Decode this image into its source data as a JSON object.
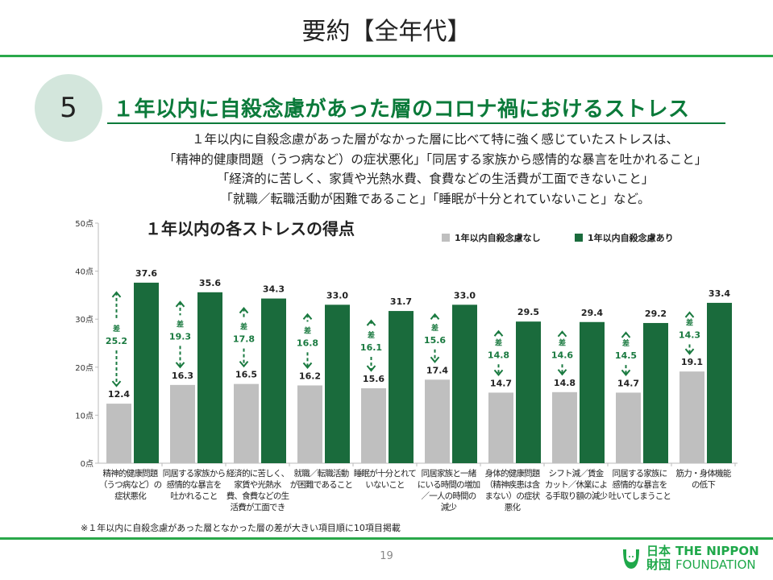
{
  "slide_title": "要約【全年代】",
  "section_number": "5",
  "heading": "１年以内に自殺念慮があった層のコロナ禍におけるストレス",
  "summary_lines": [
    "１年以内に自殺念慮があった層がなかった層に比べて特に強く感じていたストレスは、",
    "「精神的健康問題（うつ病など）の症状悪化」「同居する家族から感情的な暴言を吐かれること」",
    "「経済的に苦しく、家賃や光熱水費、食費などの生活費が工面できないこと」",
    "「就職／転職活動が困難であること」「睡眠が十分とれていないこと」など。"
  ],
  "colors": {
    "accent": "#0b7a3a",
    "gray_bar": "#bfbfbf",
    "green_bar": "#1a6b3c",
    "line": "#2aa84a"
  },
  "chart_data": {
    "type": "bar",
    "title": "１年以内の各ストレスの得点",
    "ylim": [
      0,
      50
    ],
    "yticks": [
      "0点",
      "10点",
      "20点",
      "30点",
      "40点",
      "50点"
    ],
    "ytick_values": [
      0,
      10,
      20,
      30,
      40,
      50
    ],
    "categories": [
      "精神的健康問題\n（うつ病など）の\n症状悪化",
      "同居する家族から\n感情的な暴言を\n吐かれること",
      "経済的に苦しく、\n家賃や光熱水\n費、食費などの生\n活費が工面でき",
      "就職／転職活動\nが困難であること",
      "睡眠が十分とれて\nいないこと",
      "同居家族と一緒\nにいる時間の増加\n／一人の時間の\n減少",
      "身体的健康問題\n（精神疾患は含\nまない）の症状\n悪化",
      "シフト減／賃金\nカット／休業によ\nる手取り額の減少",
      "同居する家族に\n感情的な暴言を\n吐いてしまうこと",
      "筋力・身体機能\nの低下"
    ],
    "series": [
      {
        "name": "1年以内自殺念慮なし",
        "values": [
          12.4,
          16.3,
          16.5,
          16.2,
          15.6,
          17.4,
          14.7,
          14.8,
          14.7,
          19.1
        ]
      },
      {
        "name": "1年以内自殺念慮あり",
        "values": [
          37.6,
          35.6,
          34.3,
          33.0,
          31.7,
          33.0,
          29.5,
          29.4,
          29.2,
          33.4
        ]
      }
    ],
    "diff_label": "差",
    "differences": [
      25.2,
      19.3,
      17.8,
      16.8,
      16.1,
      15.6,
      14.8,
      14.6,
      14.5,
      14.3
    ],
    "legend_position": "top-right",
    "grid": false
  },
  "note": "※１年以内に自殺念慮があった層となかった層の差が大きい項目順に10項目掲載",
  "page_number": "19",
  "logo": {
    "jp": "日本\n財団",
    "en_line1": "THE NIPPON",
    "en_line2": "FOUNDATION"
  }
}
